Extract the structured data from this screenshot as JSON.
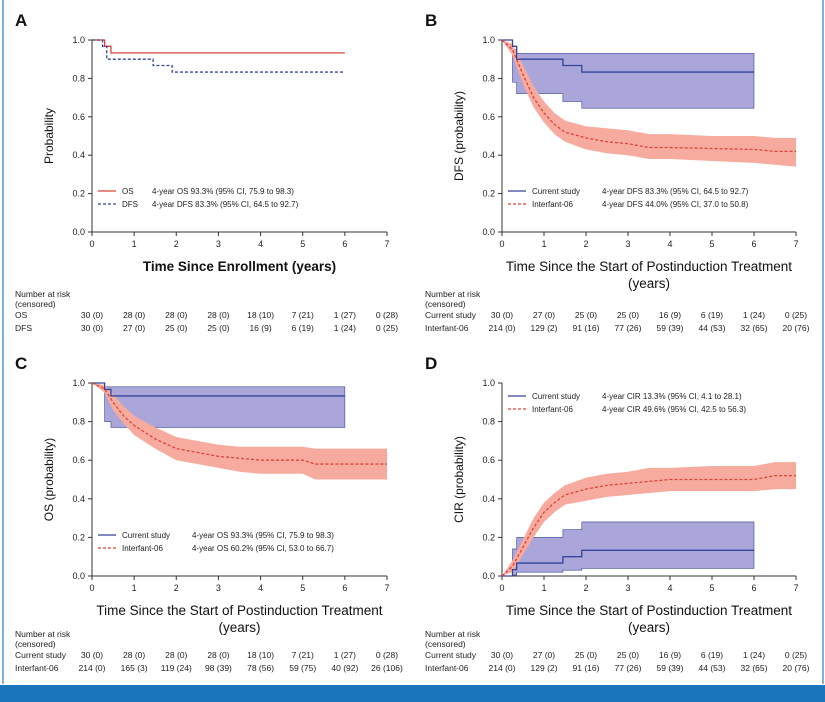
{
  "colors": {
    "red": "#d9453b",
    "red_band": "#f7ab9f",
    "blue": "#34449a",
    "blue_band": "#aaa6d9",
    "accent": "#1b75bc"
  },
  "chart_data": [
    {
      "id": "A",
      "type": "line",
      "panel_label": "A",
      "xlabel": "Time Since Enrollment (years)",
      "ylabel": "Probability",
      "xlim": [
        0,
        7
      ],
      "ylim": [
        0,
        1
      ],
      "xticks": [
        "0",
        "1",
        "2",
        "3",
        "4",
        "5",
        "6",
        "7"
      ],
      "yticks": [
        "0.0",
        "0.2",
        "0.4",
        "0.6",
        "0.8",
        "1.0"
      ],
      "series": [
        {
          "name": "OS",
          "legend": "4-year OS 93.3% (95% CI, 75.9 to 98.3)",
          "color": "red",
          "dashed": false,
          "step": true,
          "x": [
            0,
            0.3,
            0.45,
            6
          ],
          "y": [
            1,
            0.967,
            0.933,
            0.933
          ]
        },
        {
          "name": "DFS",
          "legend": "4-year DFS 83.3% (95% CI, 64.5 to 92.7)",
          "color": "blue",
          "dashed": true,
          "step": true,
          "x": [
            0,
            0.25,
            0.35,
            1.45,
            1.9,
            6
          ],
          "y": [
            1,
            0.967,
            0.9,
            0.867,
            0.833,
            0.833
          ]
        }
      ],
      "legend_position": "bottom-left",
      "risk": {
        "header": [
          "Number at risk",
          "(censored)"
        ],
        "rows": [
          {
            "label": "OS",
            "values": [
              "30 (0)",
              "28 (0)",
              "28 (0)",
              "28 (0)",
              "18 (10)",
              "7 (21)",
              "1 (27)",
              "0 (28)"
            ]
          },
          {
            "label": "DFS",
            "values": [
              "30 (0)",
              "27 (0)",
              "25 (0)",
              "25 (0)",
              "16 (9)",
              "6 (19)",
              "1 (24)",
              "0 (25)"
            ]
          }
        ]
      }
    },
    {
      "id": "B",
      "type": "line",
      "panel_label": "B",
      "xlabel": "Time Since the Start of Postinduction Treatment (years)",
      "ylabel": "DFS (probability)",
      "xlim": [
        0,
        7
      ],
      "ylim": [
        0,
        1
      ],
      "xticks": [
        "0",
        "1",
        "2",
        "3",
        "4",
        "5",
        "6",
        "7"
      ],
      "yticks": [
        "0.0",
        "0.2",
        "0.4",
        "0.6",
        "0.8",
        "1.0"
      ],
      "series": [
        {
          "name": "Current study",
          "legend": "4-year DFS 83.3% (95% CI, 64.5 to 92.7)",
          "color": "blue",
          "dashed": false,
          "step": true,
          "x": [
            0,
            0.25,
            0.35,
            1.45,
            1.9,
            6
          ],
          "y": [
            1,
            0.967,
            0.9,
            0.867,
            0.833,
            0.833
          ],
          "ci_x": [
            0.25,
            0.35,
            1.45,
            1.9,
            6
          ],
          "ci_lo": [
            0.78,
            0.72,
            0.68,
            0.645,
            0.645
          ],
          "ci_hi": [
            0.95,
            0.93,
            0.93,
            0.93,
            0.93
          ]
        },
        {
          "name": "Interfant-06",
          "legend": "4-year DFS 44.0% (95% CI, 37.0 to 50.8)",
          "color": "red",
          "dashed": true,
          "step": false,
          "x": [
            0,
            0.25,
            0.5,
            0.75,
            1,
            1.25,
            1.5,
            2,
            2.5,
            3,
            3.5,
            4,
            5,
            6,
            6.5,
            7
          ],
          "y": [
            1,
            0.95,
            0.82,
            0.7,
            0.62,
            0.56,
            0.52,
            0.49,
            0.47,
            0.46,
            0.44,
            0.44,
            0.435,
            0.43,
            0.42,
            0.42
          ],
          "ci_lo": [
            1,
            0.92,
            0.77,
            0.65,
            0.57,
            0.51,
            0.47,
            0.43,
            0.41,
            0.4,
            0.38,
            0.38,
            0.37,
            0.36,
            0.35,
            0.34
          ],
          "ci_hi": [
            1,
            0.98,
            0.87,
            0.76,
            0.68,
            0.62,
            0.58,
            0.55,
            0.54,
            0.53,
            0.51,
            0.51,
            0.5,
            0.5,
            0.49,
            0.49
          ]
        }
      ],
      "legend_position": "bottom-left",
      "risk": {
        "header": [
          "Number at risk",
          "(censored)"
        ],
        "rows": [
          {
            "label": "Current study",
            "values": [
              "30 (0)",
              "27 (0)",
              "25 (0)",
              "25 (0)",
              "16 (9)",
              "6 (19)",
              "1 (24)",
              "0 (25)"
            ]
          },
          {
            "label": "Interfant-06",
            "values": [
              "214 (0)",
              "129 (2)",
              "91 (16)",
              "77 (26)",
              "59 (39)",
              "44 (53)",
              "32 (65)",
              "20 (76)"
            ]
          }
        ]
      }
    },
    {
      "id": "C",
      "type": "line",
      "panel_label": "C",
      "xlabel": "Time Since the Start of Postinduction Treatment (years)",
      "ylabel": "OS (probability)",
      "xlim": [
        0,
        7
      ],
      "ylim": [
        0,
        1
      ],
      "xticks": [
        "0",
        "1",
        "2",
        "3",
        "4",
        "5",
        "6",
        "7"
      ],
      "yticks": [
        "0.0",
        "0.2",
        "0.4",
        "0.6",
        "0.8",
        "1.0"
      ],
      "series": [
        {
          "name": "Current study",
          "legend": "4-year OS 93.3% (95% CI, 75.9 to 98.3)",
          "color": "blue",
          "dashed": false,
          "step": true,
          "x": [
            0,
            0.3,
            0.45,
            6
          ],
          "y": [
            1,
            0.967,
            0.933,
            0.933
          ],
          "ci_x": [
            0.3,
            0.45,
            6
          ],
          "ci_lo": [
            0.8,
            0.77,
            0.77
          ],
          "ci_hi": [
            0.98,
            0.98,
            0.98
          ]
        },
        {
          "name": "Interfant-06",
          "legend": "4-year OS 60.2% (95% CI, 53.0 to 66.7)",
          "color": "red",
          "dashed": true,
          "step": false,
          "x": [
            0,
            0.3,
            0.5,
            0.75,
            1,
            1.5,
            2,
            2.5,
            3,
            3.5,
            4,
            5,
            5.3,
            7
          ],
          "y": [
            1,
            0.97,
            0.9,
            0.83,
            0.78,
            0.71,
            0.66,
            0.64,
            0.62,
            0.61,
            0.6,
            0.6,
            0.58,
            0.58
          ],
          "ci_lo": [
            1,
            0.95,
            0.86,
            0.79,
            0.73,
            0.66,
            0.6,
            0.58,
            0.56,
            0.54,
            0.53,
            0.53,
            0.5,
            0.5
          ],
          "ci_hi": [
            1,
            0.99,
            0.94,
            0.88,
            0.83,
            0.77,
            0.72,
            0.7,
            0.68,
            0.67,
            0.67,
            0.67,
            0.66,
            0.66
          ]
        }
      ],
      "legend_position": "bottom-left",
      "risk": {
        "header": [
          "Number at risk",
          "(censored)"
        ],
        "rows": [
          {
            "label": "Current study",
            "values": [
              "30 (0)",
              "28 (0)",
              "28 (0)",
              "28 (0)",
              "18 (10)",
              "7 (21)",
              "1 (27)",
              "0 (28)"
            ]
          },
          {
            "label": "Interfant-06",
            "values": [
              "214 (0)",
              "165 (3)",
              "119 (24)",
              "98 (39)",
              "78 (56)",
              "59 (75)",
              "40 (92)",
              "26 (106)"
            ]
          }
        ]
      }
    },
    {
      "id": "D",
      "type": "line",
      "panel_label": "D",
      "xlabel": "Time Since the Start of Postinduction Treatment (years)",
      "ylabel": "CIR (probability)",
      "xlim": [
        0,
        7
      ],
      "ylim": [
        0,
        1
      ],
      "xticks": [
        "0",
        "1",
        "2",
        "3",
        "4",
        "5",
        "6",
        "7"
      ],
      "yticks": [
        "0.0",
        "0.2",
        "0.4",
        "0.6",
        "0.8",
        "1.0"
      ],
      "series": [
        {
          "name": "Current study",
          "legend": "4-year CIR 13.3% (95% CI, 4.1 to 28.1)",
          "color": "blue",
          "dashed": false,
          "step": true,
          "x": [
            0,
            0.25,
            0.35,
            1.45,
            1.9,
            6
          ],
          "y": [
            0,
            0.033,
            0.067,
            0.1,
            0.133,
            0.133
          ],
          "ci_x": [
            0.25,
            0.35,
            1.45,
            1.9,
            6
          ],
          "ci_lo": [
            0.005,
            0.02,
            0.03,
            0.04,
            0.04
          ],
          "ci_hi": [
            0.14,
            0.2,
            0.24,
            0.28,
            0.28
          ]
        },
        {
          "name": "Interfant-06",
          "legend": "4-year CIR 49.6% (95% CI, 42.5 to 56.3)",
          "color": "red",
          "dashed": true,
          "step": false,
          "x": [
            0,
            0.25,
            0.5,
            0.75,
            1,
            1.25,
            1.5,
            2,
            2.5,
            3,
            3.5,
            4,
            5,
            6,
            6.5,
            7
          ],
          "y": [
            0,
            0.05,
            0.15,
            0.25,
            0.33,
            0.38,
            0.42,
            0.45,
            0.47,
            0.48,
            0.49,
            0.5,
            0.5,
            0.5,
            0.52,
            0.52
          ],
          "ci_lo": [
            0,
            0.02,
            0.11,
            0.2,
            0.28,
            0.33,
            0.37,
            0.39,
            0.41,
            0.42,
            0.43,
            0.44,
            0.44,
            0.44,
            0.45,
            0.45
          ],
          "ci_hi": [
            0,
            0.08,
            0.19,
            0.3,
            0.38,
            0.43,
            0.47,
            0.51,
            0.53,
            0.54,
            0.56,
            0.56,
            0.57,
            0.57,
            0.59,
            0.59
          ]
        }
      ],
      "legend_position": "top-left",
      "risk": {
        "header": [
          "Number at risk",
          "(censored)"
        ],
        "rows": [
          {
            "label": "Current study",
            "values": [
              "30 (0)",
              "27 (0)",
              "25 (0)",
              "25 (0)",
              "16 (9)",
              "6 (19)",
              "1 (24)",
              "0 (25)"
            ]
          },
          {
            "label": "Interfant-06",
            "values": [
              "214 (0)",
              "129 (2)",
              "91 (16)",
              "77 (26)",
              "59 (39)",
              "44 (53)",
              "32 (65)",
              "20 (76)"
            ]
          }
        ]
      }
    }
  ]
}
